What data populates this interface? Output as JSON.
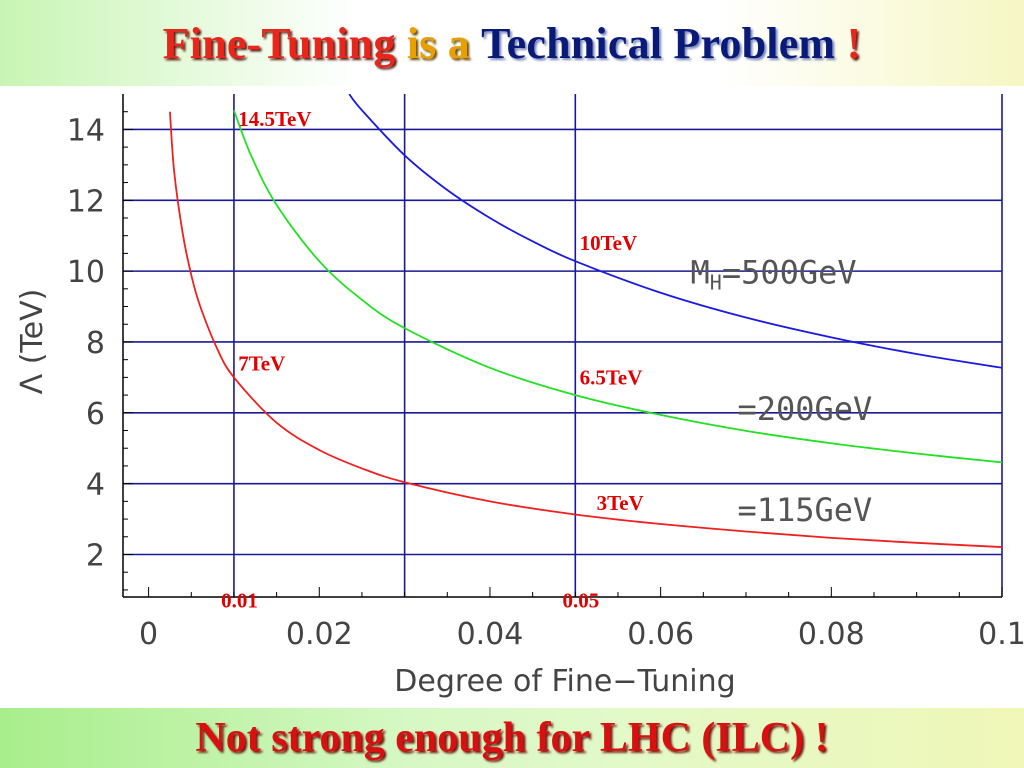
{
  "title": {
    "part1": "Fine-Tuning",
    "part2": "is a",
    "part3": "Technical Problem",
    "part4": "!"
  },
  "footer": {
    "text": "Not strong enough for LHC (ILC) !"
  },
  "colors": {
    "series_red": "#ee2020",
    "series_green": "#22e022",
    "series_blue": "#1a1ae0",
    "grid": "#1a1a99",
    "annotation": "#e00000"
  },
  "chart_data": {
    "type": "line",
    "title": "",
    "xlabel": "Degree of Fine−Tuning",
    "ylabel": "Λ (TeV)",
    "xlim": [
      -0.003,
      0.1
    ],
    "ylim": [
      0.8,
      15
    ],
    "xticks": [
      0,
      0.02,
      0.04,
      0.06,
      0.08,
      0.1
    ],
    "xtick_labels": [
      "0",
      "0.02",
      "0.04",
      "0.06",
      "0.08",
      "0.1"
    ],
    "yticks": [
      2,
      4,
      6,
      8,
      10,
      12,
      14
    ],
    "ytick_labels": [
      "2",
      "4",
      "6",
      "8",
      "10",
      "12",
      "14"
    ],
    "hgrid": [
      2,
      4,
      6,
      8,
      10,
      12,
      14
    ],
    "vgrid": [
      0.01,
      0.03,
      0.05,
      0.1
    ],
    "grid": true,
    "series": [
      {
        "label": "=115GeV",
        "color": "#ee2020",
        "x": [
          0.0025,
          0.003,
          0.004,
          0.005,
          0.006,
          0.008,
          0.01,
          0.015,
          0.02,
          0.025,
          0.03,
          0.04,
          0.05,
          0.06,
          0.07,
          0.08,
          0.09,
          0.1
        ],
        "y": [
          14.5,
          12.8,
          11.06,
          9.89,
          9.04,
          7.83,
          7.0,
          5.72,
          4.95,
          4.43,
          4.04,
          3.5,
          3.13,
          2.86,
          2.65,
          2.47,
          2.33,
          2.21
        ]
      },
      {
        "label": "=200GeV",
        "color": "#22e022",
        "x": [
          0.01,
          0.012,
          0.015,
          0.02,
          0.025,
          0.03,
          0.04,
          0.05,
          0.06,
          0.07,
          0.08,
          0.09,
          0.1
        ],
        "y": [
          14.54,
          13.27,
          11.87,
          10.28,
          9.19,
          8.39,
          7.27,
          6.5,
          5.94,
          5.49,
          5.14,
          4.85,
          4.6
        ]
      },
      {
        "label": "MH=500GeV",
        "color": "#1a1ae0",
        "x": [
          0.0235,
          0.025,
          0.03,
          0.035,
          0.04,
          0.045,
          0.05,
          0.06,
          0.07,
          0.08,
          0.09,
          0.1
        ],
        "y": [
          15.0,
          14.54,
          13.27,
          12.29,
          11.5,
          10.84,
          10.28,
          9.39,
          8.69,
          8.13,
          7.66,
          7.27
        ]
      }
    ],
    "curve_labels": [
      {
        "key": "mh500",
        "text_main": "M",
        "text_sub": "H",
        "text_rest": "=500GeV",
        "x": 0.0635,
        "y": 9.65
      },
      {
        "key": "mh200",
        "text": "=200GeV",
        "x": 0.069,
        "y": 5.8
      },
      {
        "key": "mh115",
        "text": "=115GeV",
        "x": 0.069,
        "y": 2.95
      }
    ],
    "annotations": [
      {
        "text": "14.5TeV",
        "x": 0.0105,
        "y": 14.1
      },
      {
        "text": "10TeV",
        "x": 0.0505,
        "y": 10.6
      },
      {
        "text": "7TeV",
        "x": 0.0105,
        "y": 7.2
      },
      {
        "text": "6.5TeV",
        "x": 0.0505,
        "y": 6.8
      },
      {
        "text": "3TeV",
        "x": 0.0525,
        "y": 3.25
      },
      {
        "text": "0.01",
        "x": 0.0085,
        "y": 0.5
      },
      {
        "text": "0.05",
        "x": 0.0485,
        "y": 0.5
      }
    ]
  }
}
